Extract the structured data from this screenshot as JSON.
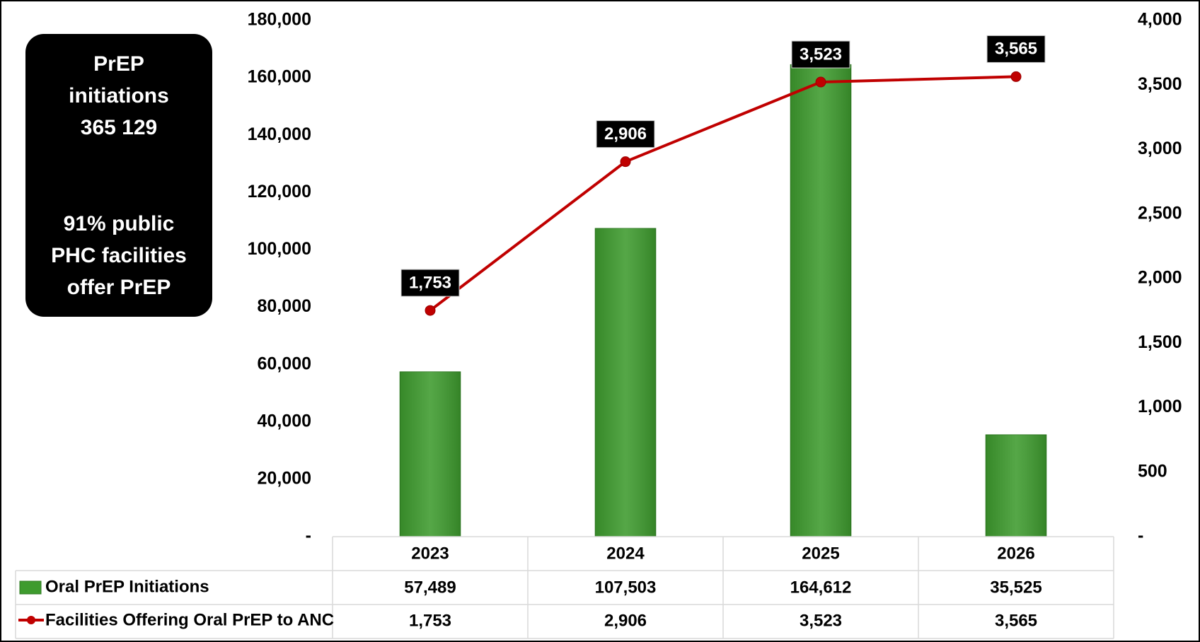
{
  "chart_data": {
    "type": "bar_line_combo",
    "categories": [
      "2023",
      "2024",
      "2025",
      "2026"
    ],
    "series": [
      {
        "name": "Oral PrEP Initiations",
        "type": "bar",
        "color": "#3e9b2e",
        "axis": "y",
        "values": [
          57489,
          107503,
          164612,
          35525
        ],
        "value_labels": [
          "57,489",
          "107,503",
          "164,612",
          "35,525"
        ]
      },
      {
        "name": "Facilities Offering Oral PrEP to ANC",
        "type": "line",
        "color": "#c00000",
        "axis": "y2",
        "values": [
          1753,
          2906,
          3523,
          3565
        ],
        "value_labels": [
          "1,753",
          "2,906",
          "3,523",
          "3,565"
        ]
      }
    ],
    "ylim": [
      0,
      180000
    ],
    "yticks": [
      {
        "value": 0,
        "label": "-"
      },
      {
        "value": 20000,
        "label": "20,000"
      },
      {
        "value": 40000,
        "label": "40,000"
      },
      {
        "value": 60000,
        "label": "60,000"
      },
      {
        "value": 80000,
        "label": "80,000"
      },
      {
        "value": 100000,
        "label": "100,000"
      },
      {
        "value": 120000,
        "label": "120,000"
      },
      {
        "value": 140000,
        "label": "140,000"
      },
      {
        "value": 160000,
        "label": "160,000"
      },
      {
        "value": 180000,
        "label": "180,000"
      }
    ],
    "y2lim": [
      0,
      4000
    ],
    "y2ticks": [
      {
        "value": 0,
        "label": "-"
      },
      500,
      {
        "value": 1000,
        "label": "1,000"
      },
      {
        "value": 1500,
        "label": "1,500"
      },
      {
        "value": 2000,
        "label": "2,000"
      },
      {
        "value": 2500,
        "label": "2,500"
      },
      {
        "value": 3000,
        "label": "3,000"
      },
      {
        "value": 3500,
        "label": "3,500"
      },
      {
        "value": 4000,
        "label": "4,000"
      }
    ],
    "annotations": [
      {
        "lines": [
          "PrEP",
          "initiations",
          "365 129"
        ]
      },
      {
        "lines": [
          "91% public",
          "PHC facilities",
          "offer PrEP"
        ]
      }
    ]
  }
}
